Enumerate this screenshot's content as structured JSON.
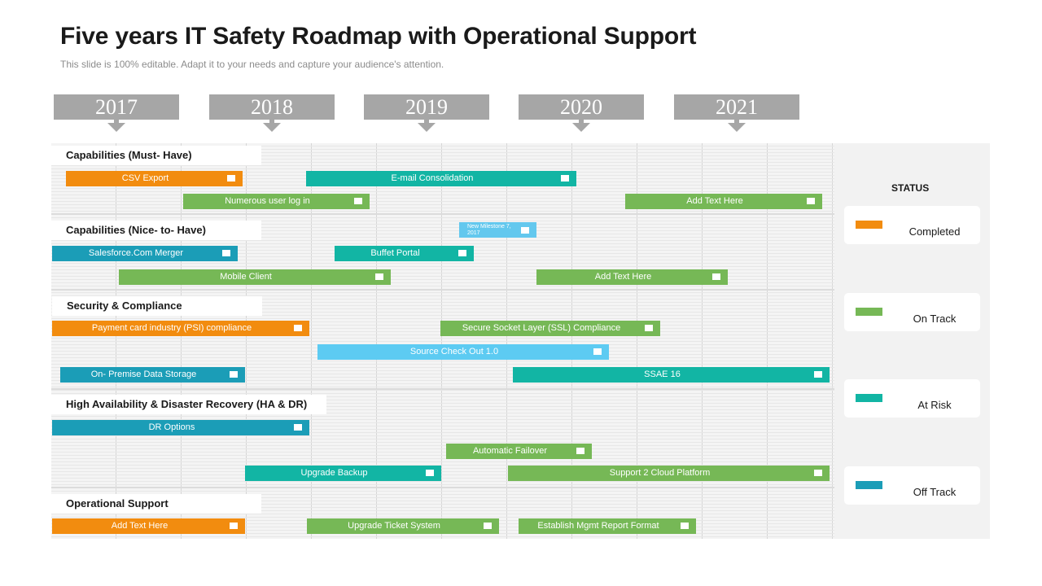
{
  "header": {
    "title": "Five years IT Safety Roadmap with Operational Support",
    "subtitle": "This slide is 100% editable. Adapt it to your needs and capture your audience's attention."
  },
  "years": [
    "2017",
    "2018",
    "2019",
    "2020",
    "2021"
  ],
  "sections": [
    {
      "label": "Capabilities (Must- Have)"
    },
    {
      "label": "Capabilities (Nice- to- Have)"
    },
    {
      "label": "Security & Compliance"
    },
    {
      "label": "High Availability & Disaster Recovery (HA & DR)"
    },
    {
      "label": "Operational Support"
    }
  ],
  "tasks": [
    {
      "label": "CSV Export",
      "status": "completed"
    },
    {
      "label": "E-mail Consolidation",
      "status": "at_risk"
    },
    {
      "label": "Numerous user log in",
      "status": "on_track"
    },
    {
      "label": "Add Text Here",
      "status": "on_track"
    },
    {
      "label": "New Milestone 7, 2017",
      "status": "milestone"
    },
    {
      "label": "Salesforce.Com Merger",
      "status": "off_track"
    },
    {
      "label": "Buffet Portal",
      "status": "at_risk"
    },
    {
      "label": "Mobile Client",
      "status": "on_track"
    },
    {
      "label": "Add Text Here",
      "status": "on_track"
    },
    {
      "label": "Payment card industry (PSI) compliance",
      "status": "completed"
    },
    {
      "label": "Secure Socket Layer (SSL) Compliance",
      "status": "on_track"
    },
    {
      "label": "Source Check Out 1.0",
      "status": "light"
    },
    {
      "label": "On- Premise Data Storage",
      "status": "off_track"
    },
    {
      "label": "SSAE 16",
      "status": "at_risk"
    },
    {
      "label": "DR Options",
      "status": "off_track"
    },
    {
      "label": "Automatic Failover",
      "status": "on_track"
    },
    {
      "label": "Upgrade Backup",
      "status": "at_risk"
    },
    {
      "label": "Support 2 Cloud Platform",
      "status": "on_track"
    },
    {
      "label": "Add Text Here",
      "status": "completed"
    },
    {
      "label": "Upgrade Ticket System",
      "status": "on_track"
    },
    {
      "label": "Establish Mgmt Report Format",
      "status": "on_track"
    }
  ],
  "status_panel": {
    "title": "STATUS",
    "items": [
      {
        "label": "Completed",
        "color": "#f28c0f"
      },
      {
        "label": "On Track",
        "color": "#76b856"
      },
      {
        "label": "At Risk",
        "color": "#12b5a4"
      },
      {
        "label": "Off Track",
        "color": "#1b9db7"
      }
    ]
  },
  "colors": {
    "completed": "#f28c0f",
    "on_track": "#76b856",
    "at_risk": "#12b5a4",
    "off_track": "#1b9db7",
    "milestone": "#63c8ee",
    "light": "#5dcbf2",
    "year_box": "#a6a6a6"
  }
}
